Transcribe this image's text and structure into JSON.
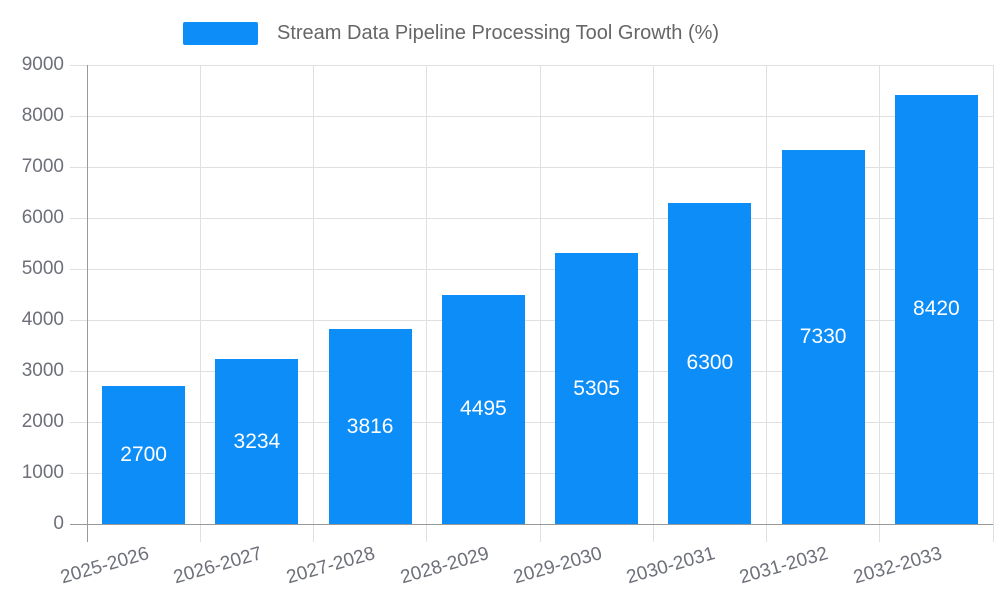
{
  "legend": {
    "label": "Stream Data Pipeline Processing Tool Growth (%)"
  },
  "colors": {
    "bar": "#0D8DF8",
    "grid_line": "#E0E0E0",
    "axis_line": "#999999",
    "axis_label": "#6E7079",
    "legend_text": "#666666",
    "value_label": "#FFFFFF",
    "background": "#FFFFFF"
  },
  "chart_data": {
    "type": "bar",
    "title": "Stream Data Pipeline Processing Tool Growth (%)",
    "categories": [
      "2025-2026",
      "2026-2027",
      "2027-2028",
      "2028-2029",
      "2029-2030",
      "2030-2031",
      "2031-2032",
      "2032-2033"
    ],
    "values": [
      2700,
      3234,
      3816,
      4495,
      5305,
      6300,
      7330,
      8420
    ],
    "xlabel": "",
    "ylabel": "",
    "ylim": [
      0,
      9000
    ],
    "y_ticks": [
      0,
      1000,
      2000,
      3000,
      4000,
      5000,
      6000,
      7000,
      8000,
      9000
    ],
    "grid": true,
    "legend_position": "top-center",
    "value_labels": "inside-center",
    "x_label_rotation_deg": 16
  }
}
